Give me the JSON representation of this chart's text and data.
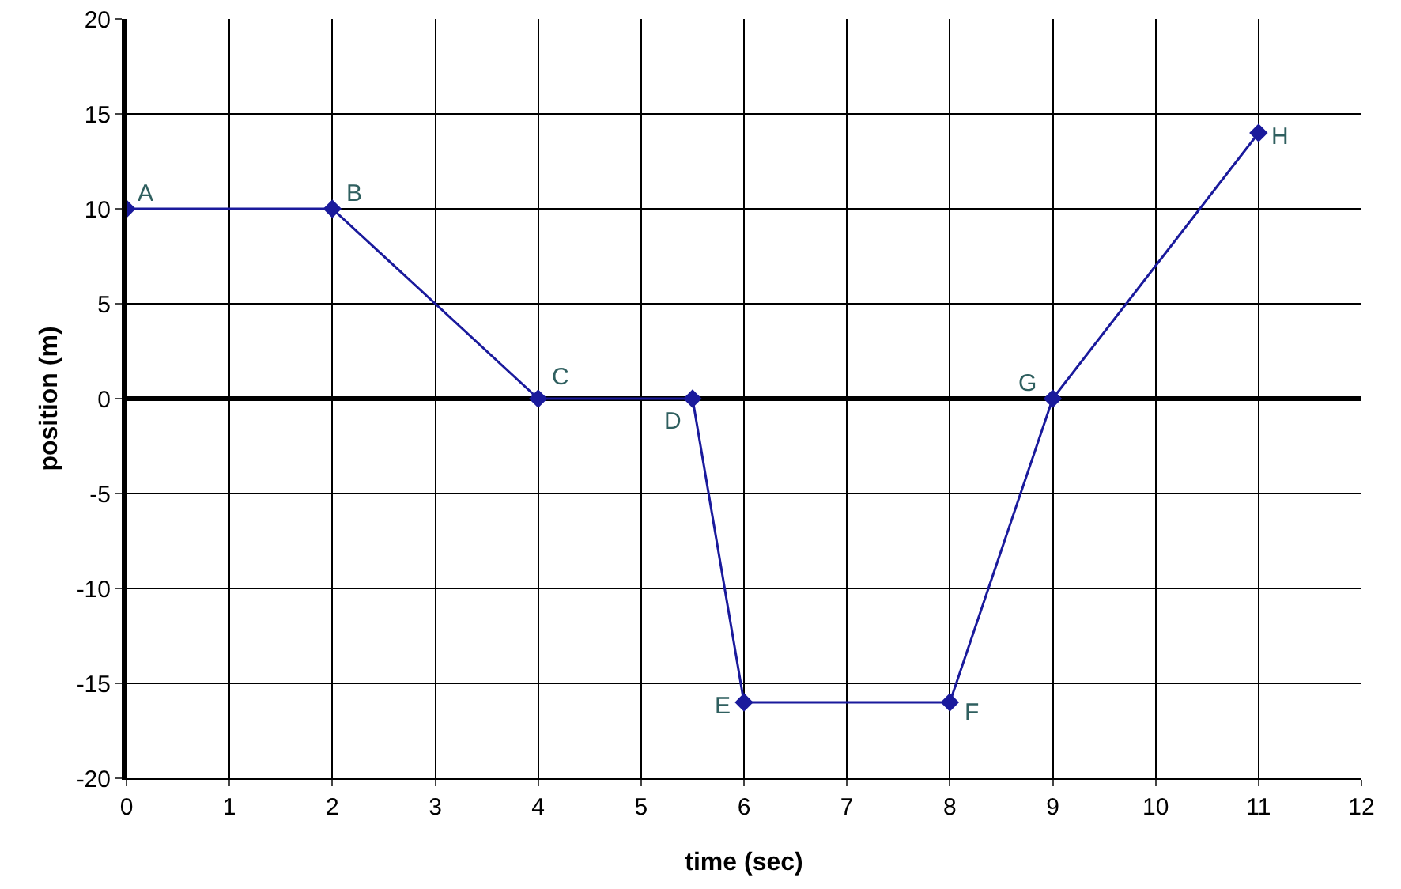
{
  "chart_data": {
    "type": "line",
    "xlabel": "time (sec)",
    "ylabel": "position (m)",
    "x": [
      0,
      2,
      4,
      5.5,
      6,
      8,
      9,
      11
    ],
    "series": [
      {
        "color": "#1a1a9c",
        "values": [
          10,
          10,
          0,
          0,
          -16,
          -16,
          0,
          14
        ]
      }
    ],
    "xlim": [
      0,
      12
    ],
    "xticks": [
      0,
      1,
      2,
      3,
      4,
      5,
      6,
      7,
      8,
      9,
      10,
      11,
      12
    ],
    "ylim": [
      -20,
      20
    ],
    "yticks": [
      -20,
      -15,
      -10,
      -5,
      0,
      5,
      10,
      15,
      20
    ],
    "grid": true,
    "marker": "diamond",
    "line_style": "solid",
    "legend": false,
    "annotations": [
      {
        "text": "A",
        "x": 0,
        "y": 10
      },
      {
        "text": "B",
        "x": 2,
        "y": 10
      },
      {
        "text": "C",
        "x": 4,
        "y": 0
      },
      {
        "text": "D",
        "x": 5.5,
        "y": 0
      },
      {
        "text": "E",
        "x": 6,
        "y": -16
      },
      {
        "text": "F",
        "x": 8,
        "y": -16
      },
      {
        "text": "G",
        "x": 9,
        "y": 0
      },
      {
        "text": "H",
        "x": 11,
        "y": 14
      }
    ]
  }
}
